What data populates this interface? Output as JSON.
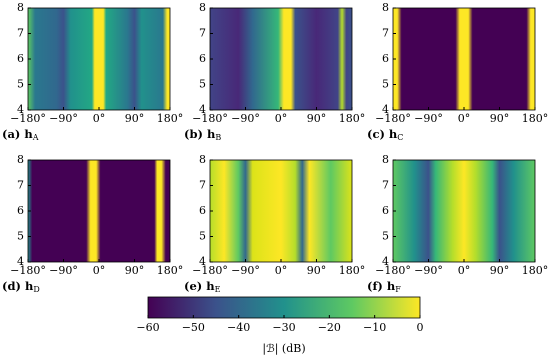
{
  "chart_data": [
    {
      "type": "heatmap",
      "caption": {
        "label": "(a)",
        "vector": "h",
        "subscript": "A"
      },
      "xlim": [
        -180,
        180
      ],
      "ylim": [
        4,
        8
      ],
      "xticks": [
        {
          "value": -180,
          "label": "−180°"
        },
        {
          "value": -90,
          "label": "−90°"
        },
        {
          "value": 0,
          "label": "0°"
        },
        {
          "value": 90,
          "label": "90°"
        },
        {
          "value": 180,
          "label": "180°"
        }
      ],
      "yticks": [
        4,
        5,
        6,
        7,
        8
      ]
    },
    {
      "type": "heatmap",
      "caption": {
        "label": "(b)",
        "vector": "h",
        "subscript": "B"
      },
      "xlim": [
        -180,
        180
      ],
      "ylim": [
        4,
        8
      ],
      "xticks": [
        {
          "value": -180,
          "label": "−180°"
        },
        {
          "value": -90,
          "label": "−90°"
        },
        {
          "value": 0,
          "label": "0°"
        },
        {
          "value": 90,
          "label": "90°"
        },
        {
          "value": 180,
          "label": "180°"
        }
      ],
      "yticks": [
        4,
        5,
        6,
        7,
        8
      ]
    },
    {
      "type": "heatmap",
      "caption": {
        "label": "(c)",
        "vector": "h",
        "subscript": "C"
      },
      "xlim": [
        -180,
        180
      ],
      "ylim": [
        4,
        8
      ],
      "xticks": [
        {
          "value": -180,
          "label": "−180°"
        },
        {
          "value": -90,
          "label": "−90°"
        },
        {
          "value": 0,
          "label": "0°"
        },
        {
          "value": 90,
          "label": "90°"
        },
        {
          "value": 180,
          "label": "180°"
        }
      ],
      "yticks": [
        4,
        5,
        6,
        7,
        8
      ]
    },
    {
      "type": "heatmap",
      "caption": {
        "label": "(d)",
        "vector": "h",
        "subscript": "D"
      },
      "xlim": [
        -180,
        180
      ],
      "ylim": [
        4,
        8
      ],
      "xticks": [
        {
          "value": -180,
          "label": "−180°"
        },
        {
          "value": -90,
          "label": "−90°"
        },
        {
          "value": 0,
          "label": "0°"
        },
        {
          "value": 90,
          "label": "90°"
        },
        {
          "value": 180,
          "label": "180°"
        }
      ],
      "yticks": [
        4,
        5,
        6,
        7,
        8
      ]
    },
    {
      "type": "heatmap",
      "caption": {
        "label": "(e)",
        "vector": "h",
        "subscript": "E"
      },
      "xlim": [
        -180,
        180
      ],
      "ylim": [
        4,
        8
      ],
      "xticks": [
        {
          "value": -180,
          "label": "−180°"
        },
        {
          "value": -90,
          "label": "−90°"
        },
        {
          "value": 0,
          "label": "0°"
        },
        {
          "value": 90,
          "label": "90°"
        },
        {
          "value": 180,
          "label": "180°"
        }
      ],
      "yticks": [
        4,
        5,
        6,
        7,
        8
      ]
    },
    {
      "type": "heatmap",
      "caption": {
        "label": "(f)",
        "vector": "h",
        "subscript": "F"
      },
      "xlim": [
        -180,
        180
      ],
      "ylim": [
        4,
        8
      ],
      "xticks": [
        {
          "value": -180,
          "label": "−180°"
        },
        {
          "value": -90,
          "label": "−90°"
        },
        {
          "value": 0,
          "label": "0°"
        },
        {
          "value": 90,
          "label": "90°"
        },
        {
          "value": 180,
          "label": "180°"
        }
      ],
      "yticks": [
        4,
        5,
        6,
        7,
        8
      ]
    }
  ],
  "colorbar": {
    "label": "|ℬ| (dB)",
    "lim": [
      -60,
      0
    ],
    "ticks": [
      {
        "value": -60,
        "label": "−60"
      },
      {
        "value": -50,
        "label": "−50"
      },
      {
        "value": -40,
        "label": "−40"
      },
      {
        "value": -30,
        "label": "−30"
      },
      {
        "value": -20,
        "label": "−20"
      },
      {
        "value": -10,
        "label": "−10"
      },
      0
    ]
  }
}
